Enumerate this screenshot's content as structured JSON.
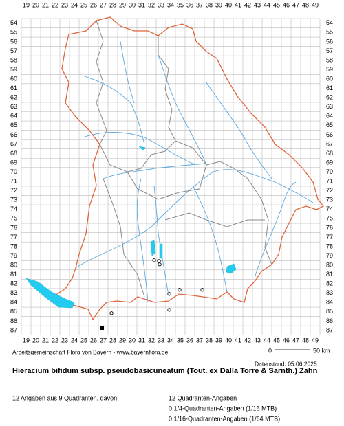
{
  "map": {
    "columns": [
      19,
      20,
      21,
      22,
      23,
      24,
      25,
      26,
      27,
      28,
      29,
      30,
      31,
      32,
      33,
      34,
      35,
      36,
      37,
      38,
      39,
      40,
      41,
      42,
      43,
      44,
      45,
      46,
      47,
      48,
      49
    ],
    "rows": [
      54,
      55,
      56,
      57,
      58,
      59,
      60,
      61,
      62,
      63,
      64,
      65,
      66,
      67,
      68,
      69,
      70,
      71,
      72,
      73,
      74,
      75,
      76,
      77,
      78,
      79,
      80,
      81,
      82,
      83,
      84,
      85,
      86,
      87
    ],
    "records": [
      {
        "x": 32.29,
        "y": 79.46,
        "symbol": "circle"
      },
      {
        "x": 32.79,
        "y": 79.54,
        "symbol": "circle"
      },
      {
        "x": 32.86,
        "y": 79.9,
        "symbol": "circle"
      },
      {
        "x": 33.86,
        "y": 83.08,
        "symbol": "circle"
      },
      {
        "x": 34.93,
        "y": 82.63,
        "symbol": "circle"
      },
      {
        "x": 37.29,
        "y": 82.63,
        "symbol": "circle"
      },
      {
        "x": 33.86,
        "y": 84.78,
        "symbol": "circle"
      },
      {
        "x": 27.86,
        "y": 85.14,
        "symbol": "circle"
      },
      {
        "x": 26.86,
        "y": 86.77,
        "symbol": "square"
      }
    ]
  },
  "footer": {
    "credit": "Arbeitsgemeinschaft Flora von Bayern - www.bayernflora.de",
    "scale_start": "0",
    "scale_end": "50 km",
    "date": "Datenstand: 05.06.2025",
    "title": "Hieracium bifidum subsp. pseudobasicuneatum (Tout. ex Dalla Torre & Sarnth.) Zahn",
    "summary": "12 Angaben aus 9 Quadranten, davon:",
    "counts": [
      "12 Quadranten-Angaben",
      "0 1/4-Quadranten-Angaben (1/16 MTB)",
      "0 1/16-Quadranten-Angaben (1/64 MTB)"
    ]
  }
}
